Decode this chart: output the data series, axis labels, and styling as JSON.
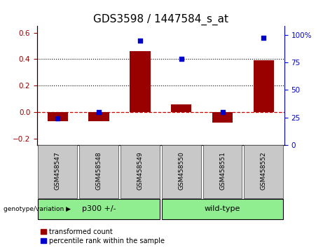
{
  "title": "GDS3598 / 1447584_s_at",
  "categories": [
    "GSM458547",
    "GSM458548",
    "GSM458549",
    "GSM458550",
    "GSM458551",
    "GSM458552"
  ],
  "red_values": [
    -0.07,
    -0.07,
    0.46,
    0.06,
    -0.08,
    0.39
  ],
  "blue_values": [
    24,
    30,
    95,
    78,
    30,
    97
  ],
  "ylim_left": [
    -0.25,
    0.65
  ],
  "ylim_right": [
    0,
    108
  ],
  "yticks_left": [
    -0.2,
    0.0,
    0.2,
    0.4,
    0.6
  ],
  "yticks_right": [
    0,
    25,
    50,
    75,
    100
  ],
  "group1_label": "p300 +/-",
  "group2_label": "wild-type",
  "red_color": "#990000",
  "blue_color": "#0000CC",
  "bar_width": 0.5,
  "legend1": "transformed count",
  "legend2": "percentile rank within the sample",
  "group_bg": "#90EE90",
  "tick_label_bg": "#C8C8C8",
  "zero_line_color": "#CC0000",
  "dotted_line_color": "black",
  "title_fontsize": 11,
  "tick_fontsize": 7.5,
  "label_fontsize": 8
}
